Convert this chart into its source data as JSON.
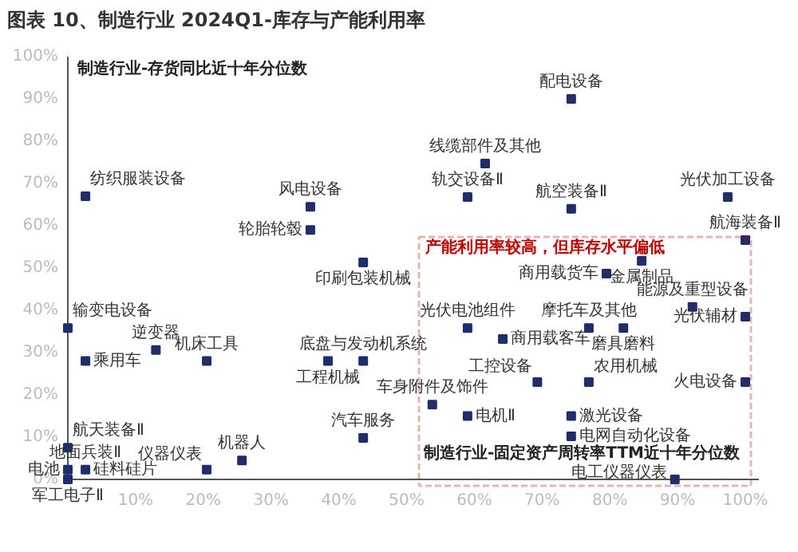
{
  "chart_data": {
    "type": "scatter",
    "title": "图表 10、制造行业 2024Q1-库存与产能利用率",
    "xlabel": "制造行业-固定资产周转率TTM近十年分位数",
    "ylabel": "制造行业-存货同比近十年分位数",
    "xlim": [
      0,
      102
    ],
    "ylim": [
      0,
      100
    ],
    "xticks": [
      {
        "value": 10,
        "label": "10%"
      },
      {
        "value": 20,
        "label": "20%"
      },
      {
        "value": 30,
        "label": "30%"
      },
      {
        "value": 40,
        "label": "40%"
      },
      {
        "value": 50,
        "label": "50%"
      },
      {
        "value": 60,
        "label": "60%"
      },
      {
        "value": 70,
        "label": "70%"
      },
      {
        "value": 80,
        "label": "80%"
      },
      {
        "value": 90,
        "label": "90%"
      },
      {
        "value": 100,
        "label": "100%"
      }
    ],
    "yticks": [
      {
        "value": 0,
        "label": "0%"
      },
      {
        "value": 10,
        "label": "10%"
      },
      {
        "value": 20,
        "label": "20%"
      },
      {
        "value": 30,
        "label": "30%"
      },
      {
        "value": 40,
        "label": "40%"
      },
      {
        "value": 50,
        "label": "50%"
      },
      {
        "value": 60,
        "label": "60%"
      },
      {
        "value": 70,
        "label": "70%"
      },
      {
        "value": 80,
        "label": "80%"
      },
      {
        "value": 90,
        "label": "90%"
      },
      {
        "value": 100,
        "label": "100%"
      }
    ],
    "grid": false,
    "marker": "square",
    "series": [
      {
        "color": "#1f2d6b",
        "x": [
          2.6,
          35.8,
          35.8,
          43.6,
          74.3,
          61.6,
          59,
          74.3,
          97.4,
          100,
          84.7,
          79.5,
          92.2,
          100,
          59,
          76.9,
          82,
          64.2,
          69.3,
          76.9,
          100,
          53.8,
          59,
          74.3,
          74.3,
          89.6,
          0,
          2.6,
          13,
          20.5,
          38.4,
          43.6,
          43.6,
          25.7,
          20.5,
          0,
          2.6,
          0,
          0
        ],
        "values": [
          67,
          64.5,
          59,
          51.3,
          90,
          74.7,
          66.8,
          64,
          66.8,
          56.6,
          51.7,
          48.7,
          40.8,
          38.5,
          35.8,
          35.8,
          35.8,
          33.2,
          23,
          23,
          23,
          17.7,
          15,
          15,
          10.2,
          0,
          35.8,
          28,
          30.6,
          28,
          28,
          28,
          9.8,
          4.5,
          2.3,
          7.5,
          2.3,
          2.3,
          0
        ]
      }
    ],
    "annotations": [
      {
        "text": "纺织服装设备",
        "x": 2.6,
        "y": 67
      },
      {
        "text": "风电设备",
        "x": 35.8,
        "y": 64.5
      },
      {
        "text": "轮胎轮毂",
        "x": 35.8,
        "y": 59
      },
      {
        "text": "印刷包装机械",
        "x": 43.6,
        "y": 51.3
      },
      {
        "text": "配电设备",
        "x": 74.3,
        "y": 90
      },
      {
        "text": "线缆部件及其他",
        "x": 61.6,
        "y": 74.7
      },
      {
        "text": "轨交设备Ⅱ",
        "x": 59,
        "y": 66.8
      },
      {
        "text": "航空装备Ⅱ",
        "x": 74.3,
        "y": 64
      },
      {
        "text": "光伏加工设备",
        "x": 97.4,
        "y": 66.8
      },
      {
        "text": "航海装备Ⅱ",
        "x": 100,
        "y": 56.6
      },
      {
        "text": "金属制品",
        "x": 84.7,
        "y": 51.7
      },
      {
        "text": "商用载货车",
        "x": 79.5,
        "y": 48.7
      },
      {
        "text": "能源及重型设备",
        "x": 92.2,
        "y": 40.8
      },
      {
        "text": "光伏辅材",
        "x": 100,
        "y": 38.5
      },
      {
        "text": "光伏电池组件",
        "x": 59,
        "y": 35.8
      },
      {
        "text": "摩托车及其他",
        "x": 76.9,
        "y": 35.8
      },
      {
        "text": "磨具磨料",
        "x": 82,
        "y": 35.8
      },
      {
        "text": "商用载客车",
        "x": 64.2,
        "y": 33.2
      },
      {
        "text": "工控设备",
        "x": 69.3,
        "y": 23
      },
      {
        "text": "农用机械",
        "x": 76.9,
        "y": 23
      },
      {
        "text": "火电设备",
        "x": 100,
        "y": 23
      },
      {
        "text": "车身附件及饰件",
        "x": 53.8,
        "y": 17.7
      },
      {
        "text": "电机Ⅱ",
        "x": 59,
        "y": 15
      },
      {
        "text": "激光设备",
        "x": 74.3,
        "y": 15
      },
      {
        "text": "电网自动化设备",
        "x": 74.3,
        "y": 10.2
      },
      {
        "text": "电工仪器仪表",
        "x": 89.6,
        "y": 0
      },
      {
        "text": "输变电设备",
        "x": 0,
        "y": 35.8
      },
      {
        "text": "乘用车",
        "x": 2.6,
        "y": 28
      },
      {
        "text": "逆变器",
        "x": 13,
        "y": 30.6
      },
      {
        "text": "机床工具",
        "x": 20.5,
        "y": 28
      },
      {
        "text": "工程机械",
        "x": 38.4,
        "y": 28
      },
      {
        "text": "底盘与发动机系统",
        "x": 43.6,
        "y": 28
      },
      {
        "text": "汽车服务",
        "x": 43.6,
        "y": 9.8
      },
      {
        "text": "机器人",
        "x": 25.7,
        "y": 4.5
      },
      {
        "text": "仪器仪表",
        "x": 20.5,
        "y": 2.3
      },
      {
        "text": "航天装备Ⅱ",
        "x": 0,
        "y": 7.5
      },
      {
        "text": "地面兵装Ⅱ",
        "x": 2.6,
        "y": 2.3
      },
      {
        "text": "硅料硅片",
        "x": 2.6,
        "y": 2.3
      },
      {
        "text": "电池",
        "x": 0,
        "y": 2.3
      },
      {
        "text": "军工电子Ⅱ",
        "x": 0,
        "y": 0
      },
      "产能利用率较高，但库存水平偏低"
    ]
  }
}
